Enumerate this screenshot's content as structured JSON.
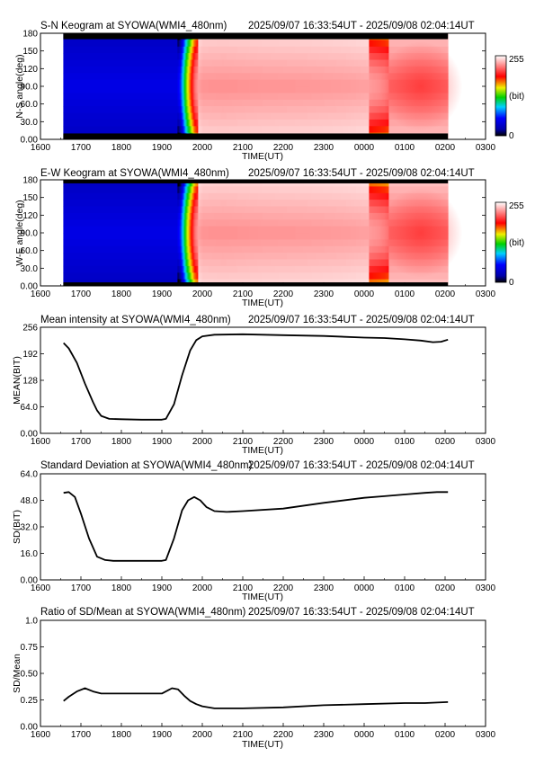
{
  "colors": {
    "ink": "#000000",
    "background": "#ffffff",
    "band_black": "#000000"
  },
  "panels": [
    {
      "id": "sn-keogram",
      "kind": "keogram",
      "title": "S-N Keogram at SYOWA(WMI4_480nm)",
      "time_range": "2025/09/07 16:33:54UT - 2025/09/08 02:04:14UT",
      "ylabel": "N-S angle(deg)",
      "yticks": [
        "0.00",
        "30.0",
        "60.0",
        "90.0",
        "120",
        "150",
        "180"
      ],
      "xlabel": "TIME(UT)",
      "xticks": [
        "1600",
        "1700",
        "1800",
        "1900",
        "2000",
        "2100",
        "2200",
        "2300",
        "0000",
        "0100",
        "0200",
        "0300"
      ],
      "colorbar": {
        "min_label": "0",
        "max_label": "255",
        "unit_label": "(bit)"
      }
    },
    {
      "id": "ew-keogram",
      "kind": "keogram",
      "title": "E-W Keogram at SYOWA(WMI4_480nm)",
      "time_range": "2025/09/07 16:33:54UT - 2025/09/08 02:04:14UT",
      "ylabel": "W-E angle(deg)",
      "yticks": [
        "0.00",
        "30.0",
        "60.0",
        "90.0",
        "120",
        "150",
        "180"
      ],
      "xlabel": "TIME(UT)",
      "xticks": [
        "1600",
        "1700",
        "1800",
        "1900",
        "2000",
        "2100",
        "2200",
        "2300",
        "0000",
        "0100",
        "0200",
        "0300"
      ],
      "colorbar": {
        "min_label": "0",
        "max_label": "255",
        "unit_label": "(bit)"
      }
    },
    {
      "id": "mean",
      "kind": "line",
      "title": "Mean intensity at SYOWA(WMI4_480nm)",
      "time_range": "2025/09/07 16:33:54UT - 2025/09/08 02:04:14UT",
      "ylabel": "MEAN(BIT)",
      "yticks": [
        "0.00",
        "64.0",
        "128",
        "192",
        "256"
      ],
      "xlabel": "TIME(UT)",
      "xticks": [
        "1600",
        "1700",
        "1800",
        "1900",
        "2000",
        "2100",
        "2200",
        "2300",
        "0000",
        "0100",
        "0200",
        "0300"
      ]
    },
    {
      "id": "sd",
      "kind": "line",
      "title": "Standard Deviation at SYOWA(WMI4_480nm)",
      "time_range": "2025/09/07 16:33:54UT - 2025/09/08 02:04:14UT",
      "ylabel": "SD(BIT)",
      "yticks": [
        "0.00",
        "16.0",
        "32.0",
        "48.0",
        "64.0"
      ],
      "xlabel": "TIME(UT)",
      "xticks": [
        "1600",
        "1700",
        "1800",
        "1900",
        "2000",
        "2100",
        "2200",
        "2300",
        "0000",
        "0100",
        "0200",
        "0300"
      ]
    },
    {
      "id": "ratio",
      "kind": "line",
      "title": "Ratio of SD/Mean at SYOWA(WMI4_480nm)",
      "time_range": "2025/09/07 16:33:54UT - 2025/09/08 02:04:14UT",
      "ylabel": "SD/Mean",
      "yticks": [
        "0.00",
        "0.25",
        "0.50",
        "0.75",
        "1.0"
      ],
      "xlabel": "TIME(UT)",
      "xticks": [
        "1600",
        "1700",
        "1800",
        "1900",
        "2000",
        "2100",
        "2200",
        "2300",
        "0000",
        "0100",
        "0200",
        "0300"
      ]
    }
  ],
  "chart_data": [
    {
      "type": "heatmap",
      "title": "S-N Keogram at SYOWA(WMI4_480nm)",
      "xlabel": "TIME(UT)",
      "ylabel": "N-S angle(deg)",
      "xlim": [
        16.0,
        27.0
      ],
      "ylim": [
        0,
        180
      ],
      "data_range_hours": [
        16.565,
        26.071
      ],
      "value_range": [
        0,
        255
      ],
      "colorscale": "rainbow (black-blue-cyan-green-yellow-red-white)",
      "dark_bands_deg": [
        [
          0,
          10
        ],
        [
          170,
          180
        ]
      ],
      "profile": {
        "hours": [
          16.57,
          16.8,
          17.2,
          18.0,
          18.9,
          19.2,
          19.45,
          19.6,
          19.8,
          20.0,
          20.5,
          21.5,
          22.5,
          23.5,
          24.5,
          25.2,
          25.6,
          26.07
        ],
        "level": [
          0.1,
          0.08,
          0.06,
          0.05,
          0.05,
          0.07,
          0.25,
          0.55,
          0.85,
          0.97,
          0.98,
          0.96,
          0.95,
          0.93,
          0.88,
          0.8,
          0.76,
          0.8
        ]
      }
    },
    {
      "type": "heatmap",
      "title": "E-W Keogram at SYOWA(WMI4_480nm)",
      "xlabel": "TIME(UT)",
      "ylabel": "W-E angle(deg)",
      "xlim": [
        16.0,
        27.0
      ],
      "ylim": [
        0,
        180
      ],
      "data_range_hours": [
        16.565,
        26.071
      ],
      "value_range": [
        0,
        255
      ],
      "colorscale": "rainbow (black-blue-cyan-green-yellow-red-white)",
      "dark_bands_deg": [
        [
          0,
          6
        ],
        [
          174,
          180
        ]
      ],
      "profile": {
        "hours": [
          16.57,
          16.8,
          17.2,
          18.0,
          18.9,
          19.2,
          19.45,
          19.6,
          19.8,
          20.0,
          20.5,
          21.5,
          22.5,
          23.5,
          24.5,
          25.2,
          25.6,
          26.07
        ],
        "level": [
          0.1,
          0.08,
          0.06,
          0.05,
          0.05,
          0.07,
          0.25,
          0.55,
          0.85,
          0.97,
          0.98,
          0.96,
          0.95,
          0.93,
          0.88,
          0.8,
          0.76,
          0.8
        ]
      }
    },
    {
      "type": "line",
      "title": "Mean intensity at SYOWA(WMI4_480nm)",
      "xlabel": "TIME(UT)",
      "ylabel": "MEAN(BIT)",
      "xlim": [
        16.0,
        27.0
      ],
      "ylim": [
        0,
        256
      ],
      "series": [
        {
          "x": [
            16.57,
            16.7,
            16.9,
            17.1,
            17.3,
            17.4,
            17.5,
            17.7,
            18.0,
            18.5,
            19.0,
            19.1,
            19.3,
            19.5,
            19.7,
            19.85,
            20.0,
            20.3,
            21.0,
            22.0,
            23.0,
            24.0,
            24.5,
            25.0,
            25.4,
            25.7,
            25.9,
            26.07
          ],
          "y": [
            218,
            205,
            170,
            120,
            75,
            55,
            42,
            35,
            34,
            33,
            33,
            35,
            70,
            140,
            200,
            225,
            234,
            238,
            239,
            237,
            235,
            231,
            230,
            227,
            224,
            220,
            221,
            226
          ]
        }
      ]
    },
    {
      "type": "line",
      "title": "Standard Deviation at SYOWA(WMI4_480nm)",
      "xlabel": "TIME(UT)",
      "ylabel": "SD(BIT)",
      "xlim": [
        16.0,
        27.0
      ],
      "ylim": [
        0,
        64
      ],
      "series": [
        {
          "x": [
            16.57,
            16.7,
            16.85,
            17.0,
            17.2,
            17.4,
            17.6,
            17.8,
            18.0,
            18.5,
            19.0,
            19.1,
            19.3,
            19.5,
            19.65,
            19.8,
            19.95,
            20.1,
            20.3,
            20.6,
            21.0,
            22.0,
            23.0,
            24.0,
            24.5,
            25.0,
            25.5,
            25.8,
            26.07
          ],
          "y": [
            52.5,
            53.0,
            50,
            40,
            25,
            14,
            12,
            11.5,
            11.5,
            11.5,
            11.5,
            12,
            25,
            42,
            48,
            50,
            48,
            44,
            41.5,
            41,
            41.5,
            43,
            46.5,
            49.5,
            50.5,
            51.5,
            52.5,
            53,
            53
          ]
        }
      ]
    },
    {
      "type": "line",
      "title": "Ratio of SD/Mean at SYOWA(WMI4_480nm)",
      "xlabel": "TIME(UT)",
      "ylabel": "SD/Mean",
      "xlim": [
        16.0,
        27.0
      ],
      "ylim": [
        0,
        1.0
      ],
      "series": [
        {
          "x": [
            16.57,
            16.7,
            16.9,
            17.1,
            17.3,
            17.5,
            18.0,
            18.5,
            19.0,
            19.1,
            19.25,
            19.4,
            19.55,
            19.7,
            19.85,
            20.0,
            20.3,
            20.6,
            21.0,
            22.0,
            23.0,
            24.0,
            25.0,
            25.5,
            26.07
          ],
          "y": [
            0.24,
            0.28,
            0.33,
            0.36,
            0.33,
            0.31,
            0.31,
            0.31,
            0.31,
            0.33,
            0.36,
            0.35,
            0.29,
            0.24,
            0.21,
            0.19,
            0.17,
            0.17,
            0.17,
            0.18,
            0.2,
            0.21,
            0.22,
            0.22,
            0.23
          ]
        }
      ]
    }
  ]
}
